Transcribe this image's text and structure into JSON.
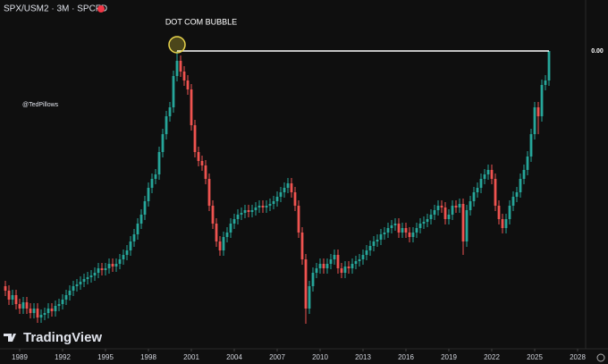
{
  "chart_data": {
    "type": "candlestick",
    "title": "SPX/USM2 · 3M · SPCFD",
    "annotation": "DOT COM BUBBLE",
    "watermark": "@TedPillows",
    "brand": "TradingView",
    "up_color": "#26a69a",
    "down_color": "#ef5350",
    "hline": {
      "value": 0.00333,
      "label": "0.00"
    },
    "xlim": [
      1987.625,
      2028.5625
    ],
    "ylim": [
      0,
      0.0039
    ],
    "xticks": [
      1989,
      1992,
      1995,
      1998,
      2001,
      2004,
      2007,
      2010,
      2013,
      2016,
      2019,
      2022,
      2025,
      2028
    ],
    "x": [
      1988,
      1988.25,
      1988.5,
      1988.75,
      1989,
      1989.25,
      1989.5,
      1989.75,
      1990,
      1990.25,
      1990.5,
      1990.75,
      1991,
      1991.25,
      1991.5,
      1991.75,
      1992,
      1992.25,
      1992.5,
      1992.75,
      1993,
      1993.25,
      1993.5,
      1993.75,
      1994,
      1994.25,
      1994.5,
      1994.75,
      1995,
      1995.25,
      1995.5,
      1995.75,
      1996,
      1996.25,
      1996.5,
      1996.75,
      1997,
      1997.25,
      1997.5,
      1997.75,
      1998,
      1998.25,
      1998.5,
      1998.75,
      1999,
      1999.25,
      1999.5,
      1999.75,
      2000,
      2000.25,
      2000.5,
      2000.75,
      2001,
      2001.25,
      2001.5,
      2001.75,
      2002,
      2002.25,
      2002.5,
      2002.75,
      2003,
      2003.25,
      2003.5,
      2003.75,
      2004,
      2004.25,
      2004.5,
      2004.75,
      2005,
      2005.25,
      2005.5,
      2005.75,
      2006,
      2006.25,
      2006.5,
      2006.75,
      2007,
      2007.25,
      2007.5,
      2007.75,
      2008,
      2008.25,
      2008.5,
      2008.75,
      2009,
      2009.25,
      2009.5,
      2009.75,
      2010,
      2010.25,
      2010.5,
      2010.75,
      2011,
      2011.25,
      2011.5,
      2011.75,
      2012,
      2012.25,
      2012.5,
      2012.75,
      2013,
      2013.25,
      2013.5,
      2013.75,
      2014,
      2014.25,
      2014.5,
      2014.75,
      2015,
      2015.25,
      2015.5,
      2015.75,
      2016,
      2016.25,
      2016.5,
      2016.75,
      2017,
      2017.25,
      2017.5,
      2017.75,
      2018,
      2018.25,
      2018.5,
      2018.75,
      2019,
      2019.25,
      2019.5,
      2019.75,
      2020,
      2020.25,
      2020.5,
      2020.75,
      2021,
      2021.25,
      2021.5,
      2021.75,
      2022,
      2022.25,
      2022.5,
      2022.75,
      2023,
      2023.25,
      2023.5,
      2023.75,
      2024,
      2024.25,
      2024.5,
      2024.75,
      2025,
      2025.25,
      2025.5,
      2025.75,
      2026
    ],
    "open": [
      0.0007,
      0.00065,
      0.00055,
      0.0006,
      0.0005,
      0.00045,
      0.00052,
      0.00045,
      0.0004,
      0.00045,
      0.00035,
      0.00038,
      0.0004,
      0.00045,
      0.00042,
      0.00048,
      0.0005,
      0.00055,
      0.0006,
      0.00065,
      0.0007,
      0.00072,
      0.00075,
      0.00078,
      0.0008,
      0.00082,
      0.00085,
      0.0009,
      0.00088,
      0.0009,
      0.00095,
      0.00092,
      0.00095,
      0.001,
      0.00105,
      0.0011,
      0.0012,
      0.00128,
      0.0014,
      0.0015,
      0.00165,
      0.0018,
      0.0019,
      0.00195,
      0.0022,
      0.0024,
      0.0026,
      0.0027,
      0.00305,
      0.00322,
      0.0031,
      0.003,
      0.0029,
      0.0025,
      0.0022,
      0.0021,
      0.00205,
      0.0019,
      0.0016,
      0.0014,
      0.0012,
      0.0011,
      0.00125,
      0.0013,
      0.0014,
      0.00145,
      0.0015,
      0.00152,
      0.00155,
      0.00153,
      0.00155,
      0.00158,
      0.0016,
      0.00158,
      0.0016,
      0.00162,
      0.00165,
      0.0017,
      0.00175,
      0.0018,
      0.00185,
      0.00175,
      0.0016,
      0.0013,
      0.001,
      0.00045,
      0.0007,
      0.00085,
      0.0009,
      0.00095,
      0.0009,
      0.00095,
      0.001,
      0.00105,
      0.0009,
      0.00085,
      0.00092,
      0.0009,
      0.00095,
      0.00098,
      0.001,
      0.00105,
      0.0011,
      0.00115,
      0.0012,
      0.00122,
      0.00128,
      0.0013,
      0.00135,
      0.00138,
      0.0014,
      0.0013,
      0.00135,
      0.0013,
      0.00125,
      0.0013,
      0.00135,
      0.0014,
      0.00142,
      0.00145,
      0.0015,
      0.00155,
      0.0016,
      0.00158,
      0.00145,
      0.0015,
      0.0016,
      0.00158,
      0.00162,
      0.0012,
      0.00155,
      0.00165,
      0.00175,
      0.0018,
      0.0019,
      0.00195,
      0.002,
      0.0019,
      0.0016,
      0.00145,
      0.00135,
      0.00145,
      0.0016,
      0.0017,
      0.00175,
      0.0019,
      0.002,
      0.00215,
      0.0024,
      0.0027,
      0.0026,
      0.00295,
      0.003
    ],
    "high": [
      0.00076,
      0.00071,
      0.00066,
      0.00066,
      0.00056,
      0.00058,
      0.00058,
      0.00051,
      0.00051,
      0.00051,
      0.00044,
      0.00046,
      0.00051,
      0.00051,
      0.00054,
      0.00056,
      0.00061,
      0.00066,
      0.00071,
      0.00076,
      0.00078,
      0.00081,
      0.00084,
      0.00086,
      0.00088,
      0.00091,
      0.00096,
      0.00096,
      0.00096,
      0.00101,
      0.00101,
      0.00101,
      0.00106,
      0.00111,
      0.00116,
      0.00126,
      0.00134,
      0.00146,
      0.00156,
      0.00171,
      0.00186,
      0.00196,
      0.00201,
      0.00226,
      0.00246,
      0.00266,
      0.00276,
      0.00311,
      0.00333,
      0.00328,
      0.00316,
      0.00306,
      0.00296,
      0.00256,
      0.00226,
      0.00216,
      0.00211,
      0.00196,
      0.00166,
      0.00146,
      0.00126,
      0.00131,
      0.00136,
      0.00146,
      0.00151,
      0.00156,
      0.00158,
      0.00161,
      0.00161,
      0.00161,
      0.00164,
      0.00166,
      0.00166,
      0.00166,
      0.00168,
      0.00171,
      0.00176,
      0.00181,
      0.00186,
      0.00191,
      0.00191,
      0.00181,
      0.00166,
      0.00136,
      0.00106,
      0.00076,
      0.00091,
      0.00096,
      0.00101,
      0.00101,
      0.00101,
      0.00106,
      0.00111,
      0.00111,
      0.00096,
      0.00098,
      0.00098,
      0.00101,
      0.00104,
      0.00106,
      0.00111,
      0.00116,
      0.00121,
      0.00126,
      0.00128,
      0.00134,
      0.00136,
      0.00141,
      0.00144,
      0.00146,
      0.00146,
      0.00141,
      0.00141,
      0.00136,
      0.00136,
      0.00141,
      0.00146,
      0.00148,
      0.00151,
      0.00156,
      0.00161,
      0.00166,
      0.00166,
      0.00164,
      0.00156,
      0.00166,
      0.00166,
      0.00168,
      0.00168,
      0.00161,
      0.00171,
      0.00181,
      0.00186,
      0.00196,
      0.00201,
      0.00206,
      0.00206,
      0.00196,
      0.00166,
      0.00151,
      0.00151,
      0.00166,
      0.00176,
      0.00181,
      0.00196,
      0.00206,
      0.00221,
      0.00246,
      0.00276,
      0.00276,
      0.00301,
      0.00306,
      0.00333
    ],
    "low": [
      0.00059,
      0.00049,
      0.00049,
      0.00044,
      0.00039,
      0.00039,
      0.00039,
      0.00034,
      0.00034,
      0.00029,
      0.00029,
      0.00032,
      0.00034,
      0.00036,
      0.00036,
      0.00042,
      0.00044,
      0.00049,
      0.00054,
      0.00059,
      0.00064,
      0.00066,
      0.00069,
      0.00072,
      0.00074,
      0.00076,
      0.00079,
      0.00082,
      0.00082,
      0.00084,
      0.00086,
      0.00086,
      0.00089,
      0.00094,
      0.00099,
      0.00104,
      0.00114,
      0.00122,
      0.00134,
      0.00144,
      0.00159,
      0.00174,
      0.00184,
      0.00189,
      0.00214,
      0.00234,
      0.00254,
      0.00264,
      0.00299,
      0.00304,
      0.00294,
      0.00284,
      0.00244,
      0.00214,
      0.00204,
      0.00199,
      0.00184,
      0.00154,
      0.00134,
      0.00114,
      0.00104,
      0.00104,
      0.00119,
      0.00124,
      0.00134,
      0.00139,
      0.00144,
      0.00146,
      0.00147,
      0.00147,
      0.00149,
      0.00152,
      0.00152,
      0.00152,
      0.00154,
      0.00156,
      0.00159,
      0.00164,
      0.00169,
      0.00174,
      0.00169,
      0.00154,
      0.00124,
      0.00094,
      0.00028,
      0.00039,
      0.00064,
      0.00079,
      0.00084,
      0.00084,
      0.00084,
      0.00089,
      0.00094,
      0.00084,
      0.00079,
      0.00079,
      0.00084,
      0.00084,
      0.00089,
      0.00092,
      0.00094,
      0.00099,
      0.00104,
      0.00109,
      0.00114,
      0.00116,
      0.00122,
      0.00124,
      0.00129,
      0.00132,
      0.00124,
      0.00124,
      0.00124,
      0.00119,
      0.00119,
      0.00124,
      0.00129,
      0.00134,
      0.00136,
      0.00139,
      0.00144,
      0.00149,
      0.00152,
      0.00139,
      0.00139,
      0.00144,
      0.00152,
      0.00152,
      0.00105,
      0.00114,
      0.00149,
      0.00159,
      0.00169,
      0.00174,
      0.00184,
      0.00189,
      0.00184,
      0.00154,
      0.00139,
      0.00129,
      0.00129,
      0.00139,
      0.00154,
      0.00164,
      0.00169,
      0.00184,
      0.00194,
      0.00209,
      0.00234,
      0.0024,
      0.00254,
      0.00289,
      0.00294
    ],
    "close": [
      0.00065,
      0.00055,
      0.0006,
      0.0005,
      0.00045,
      0.00052,
      0.00045,
      0.0004,
      0.00045,
      0.00035,
      0.00038,
      0.0004,
      0.00045,
      0.00042,
      0.00048,
      0.0005,
      0.00055,
      0.0006,
      0.00065,
      0.0007,
      0.00072,
      0.00075,
      0.00078,
      0.0008,
      0.00082,
      0.00085,
      0.0009,
      0.00088,
      0.0009,
      0.00095,
      0.00092,
      0.00095,
      0.001,
      0.00105,
      0.0011,
      0.0012,
      0.00128,
      0.0014,
      0.0015,
      0.00165,
      0.0018,
      0.0019,
      0.00195,
      0.0022,
      0.0024,
      0.0026,
      0.0027,
      0.00305,
      0.00322,
      0.0031,
      0.003,
      0.0029,
      0.0025,
      0.0022,
      0.0021,
      0.00205,
      0.0019,
      0.0016,
      0.0014,
      0.0012,
      0.0011,
      0.00125,
      0.0013,
      0.0014,
      0.00145,
      0.0015,
      0.00152,
      0.00155,
      0.00153,
      0.00155,
      0.00158,
      0.0016,
      0.00158,
      0.0016,
      0.00162,
      0.00165,
      0.0017,
      0.00175,
      0.0018,
      0.00185,
      0.00175,
      0.0016,
      0.0013,
      0.001,
      0.00045,
      0.0007,
      0.00085,
      0.0009,
      0.00095,
      0.0009,
      0.00095,
      0.001,
      0.00105,
      0.0009,
      0.00085,
      0.00092,
      0.0009,
      0.00095,
      0.00098,
      0.001,
      0.00105,
      0.0011,
      0.00115,
      0.0012,
      0.00122,
      0.00128,
      0.0013,
      0.00135,
      0.00138,
      0.0014,
      0.0013,
      0.00135,
      0.0013,
      0.00125,
      0.0013,
      0.00135,
      0.0014,
      0.00142,
      0.00145,
      0.0015,
      0.00155,
      0.0016,
      0.00158,
      0.00145,
      0.0015,
      0.0016,
      0.00158,
      0.00162,
      0.0012,
      0.00155,
      0.00165,
      0.00175,
      0.0018,
      0.0019,
      0.00195,
      0.002,
      0.0019,
      0.0016,
      0.00145,
      0.00135,
      0.00145,
      0.0016,
      0.0017,
      0.00175,
      0.0019,
      0.002,
      0.00215,
      0.0024,
      0.0027,
      0.0026,
      0.00295,
      0.003,
      0.00333
    ]
  }
}
